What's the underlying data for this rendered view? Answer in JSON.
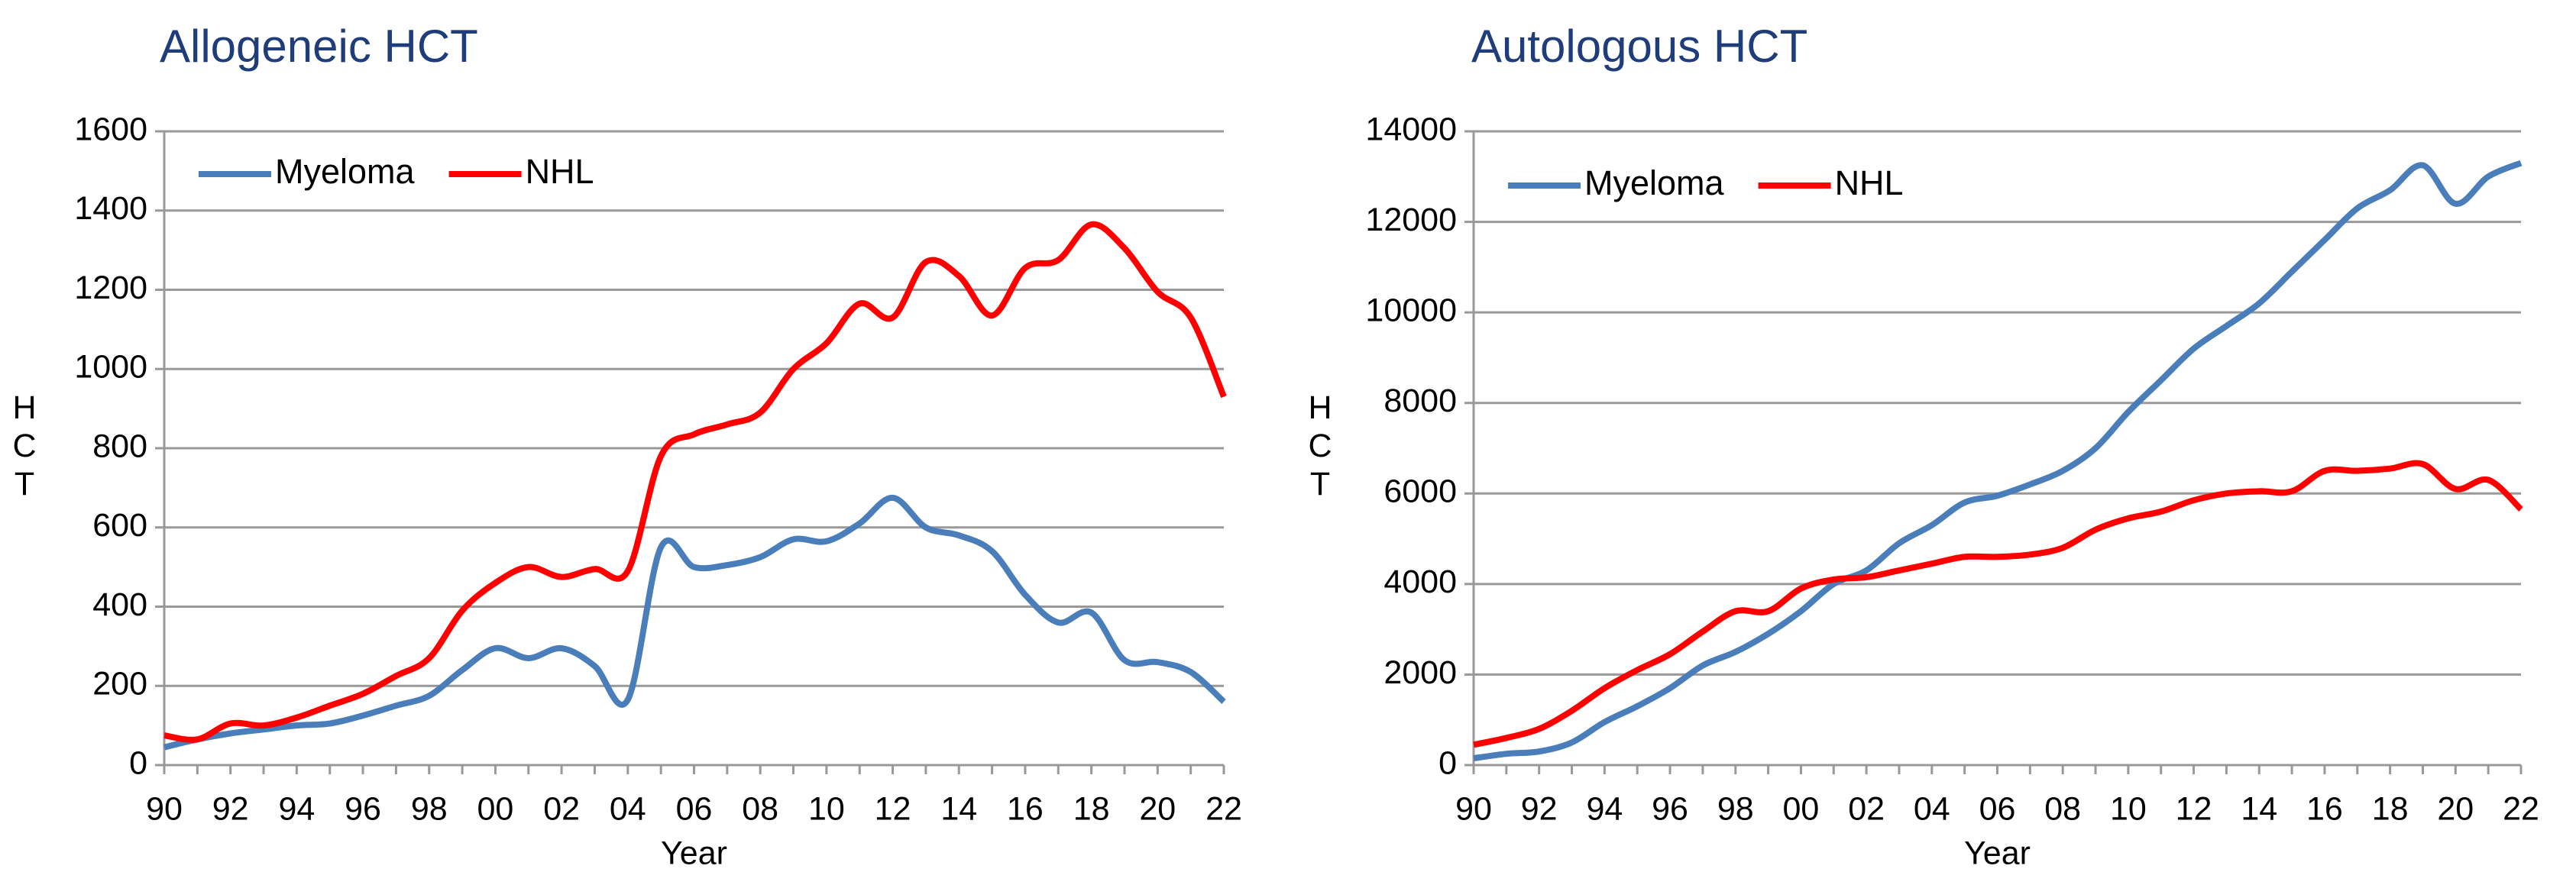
{
  "chart_data": [
    {
      "type": "line",
      "title": "Allogeneic HCT",
      "y_label": "HCT",
      "x_label": "Year",
      "categories": [
        "90",
        null,
        "92",
        null,
        "94",
        null,
        "96",
        null,
        "98",
        null,
        "00",
        null,
        "02",
        null,
        "04",
        null,
        "06",
        null,
        "08",
        null,
        "10",
        null,
        "12",
        null,
        "14",
        null,
        "16",
        null,
        "18",
        null,
        "20",
        null,
        "22"
      ],
      "series": [
        {
          "name": "Myeloma",
          "color": "#4a7ebb",
          "values": [
            45,
            65,
            80,
            90,
            100,
            105,
            125,
            150,
            175,
            240,
            295,
            270,
            295,
            250,
            165,
            550,
            500,
            505,
            525,
            570,
            565,
            610,
            675,
            600,
            580,
            540,
            430,
            360,
            385,
            265,
            260,
            235,
            160
          ]
        },
        {
          "name": "NHL",
          "color": "#ff0000",
          "values": [
            75,
            65,
            105,
            100,
            120,
            150,
            180,
            225,
            270,
            390,
            460,
            500,
            475,
            495,
            490,
            780,
            835,
            860,
            890,
            1000,
            1065,
            1165,
            1130,
            1270,
            1235,
            1135,
            1255,
            1275,
            1365,
            1305,
            1195,
            1130,
            930
          ]
        }
      ],
      "ylim": [
        0,
        1600
      ],
      "yticks": [
        0,
        200,
        400,
        600,
        800,
        1000,
        1200,
        1400,
        1600
      ],
      "grid": true,
      "legend": "upper left"
    },
    {
      "type": "line",
      "title": "Autologous HCT",
      "y_label": "HCT",
      "x_label": "Year",
      "categories": [
        "90",
        null,
        "92",
        null,
        "94",
        null,
        "96",
        null,
        "98",
        null,
        "00",
        null,
        "02",
        null,
        "04",
        null,
        "06",
        null,
        "08",
        null,
        "10",
        null,
        "12",
        null,
        "14",
        null,
        "16",
        null,
        "18",
        null,
        "20",
        null,
        "22"
      ],
      "series": [
        {
          "name": "Myeloma",
          "color": "#4a7ebb",
          "values": [
            150,
            250,
            300,
            500,
            950,
            1300,
            1700,
            2200,
            2500,
            2900,
            3400,
            4000,
            4300,
            4900,
            5300,
            5800,
            5950,
            6200,
            6500,
            7000,
            7800,
            8500,
            9200,
            9700,
            10200,
            10900,
            11600,
            12300,
            12700,
            13250,
            12400,
            13000,
            13300
          ]
        },
        {
          "name": "NHL",
          "color": "#ff0000",
          "values": [
            450,
            600,
            800,
            1200,
            1700,
            2100,
            2450,
            2950,
            3400,
            3400,
            3900,
            4100,
            4150,
            4300,
            4450,
            4600,
            4600,
            4650,
            4800,
            5200,
            5450,
            5600,
            5850,
            6000,
            6050,
            6050,
            6500,
            6500,
            6550,
            6650,
            6100,
            6300,
            5650
          ]
        }
      ],
      "ylim": [
        0,
        14000
      ],
      "yticks": [
        0,
        2000,
        4000,
        6000,
        8000,
        10000,
        12000,
        14000
      ],
      "grid": true,
      "legend": "upper left"
    }
  ]
}
